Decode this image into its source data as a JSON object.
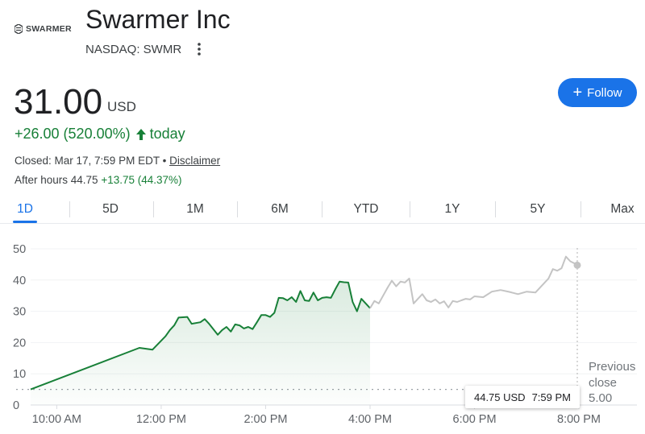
{
  "header": {
    "logo_text": "SWARMER",
    "company_name": "Swarmer Inc",
    "exchange_ticker": "NASDAQ: SWMR",
    "more_icon": "more-vert-icon",
    "follow_label": "Follow"
  },
  "quote": {
    "price": "31.00",
    "currency": "USD",
    "change": "+26.00 (520.00%)",
    "change_suffix": "today",
    "closed_text": "Closed: Mar 17, 7:59 PM EDT •",
    "disclaimer": "Disclaimer",
    "after_hours_label": "After hours 44.75",
    "after_hours_change": "+13.75 (44.37%)"
  },
  "tabs": [
    {
      "label": "1D",
      "active": true
    },
    {
      "label": "5D",
      "active": false
    },
    {
      "label": "1M",
      "active": false
    },
    {
      "label": "6M",
      "active": false
    },
    {
      "label": "YTD",
      "active": false
    },
    {
      "label": "1Y",
      "active": false
    },
    {
      "label": "5Y",
      "active": false
    },
    {
      "label": "Max",
      "active": false
    }
  ],
  "tooltip": {
    "price": "44.75 USD",
    "time": "7:59 PM"
  },
  "colors": {
    "up": "#188038",
    "accent": "#1a73e8",
    "after_hours_line": "#c4c4c4"
  },
  "chart_data": {
    "type": "line",
    "y_ticks": [
      "0",
      "10",
      "20",
      "30",
      "40",
      "50"
    ],
    "x_ticks": [
      "10:00 AM",
      "12:00 PM",
      "2:00 PM",
      "4:00 PM",
      "6:00 PM",
      "8:00 PM"
    ],
    "ylim": [
      0,
      50
    ],
    "previous_close_label": [
      "Previous",
      "close",
      "5.00"
    ],
    "previous_close": 5.0,
    "series": [
      {
        "session": "regular",
        "x": [
          "9:30",
          "11:35",
          "11:50",
          "12:05",
          "12:10",
          "12:15",
          "12:20",
          "12:30",
          "12:35",
          "12:45",
          "12:50",
          "12:55",
          "13:05",
          "13:10",
          "13:15",
          "13:20",
          "13:25",
          "13:30",
          "13:35",
          "13:40",
          "13:45",
          "13:50",
          "13:55",
          "14:00",
          "14:05",
          "14:10",
          "14:15",
          "14:20",
          "14:25",
          "14:30",
          "14:35",
          "14:40",
          "14:45",
          "14:50",
          "14:55",
          "15:00",
          "15:05",
          "15:10",
          "15:15",
          "15:20",
          "15:25",
          "15:30",
          "15:35",
          "15:40",
          "15:45",
          "15:50",
          "16:00"
        ],
        "y": [
          5,
          18.3,
          17.7,
          22,
          24,
          25.5,
          28,
          28.2,
          26,
          26.5,
          27.5,
          26,
          22.5,
          24,
          25,
          23.5,
          25.8,
          25.5,
          24.5,
          25,
          24.3,
          26.5,
          28.8,
          28.8,
          28.2,
          29.5,
          34.3,
          34.2,
          33.5,
          34.5,
          33,
          36.5,
          33.5,
          33.3,
          36,
          33.5,
          34.3,
          34.5,
          34.3,
          37,
          39.5,
          39.3,
          39.2,
          33,
          30,
          34,
          31
        ]
      },
      {
        "session": "after-hours",
        "x": [
          "16:00",
          "16:05",
          "16:10",
          "16:15",
          "16:20",
          "16:25",
          "16:30",
          "16:35",
          "16:40",
          "16:45",
          "16:50",
          "16:55",
          "17:00",
          "17:05",
          "17:10",
          "17:15",
          "17:20",
          "17:25",
          "17:30",
          "17:35",
          "17:40",
          "17:45",
          "17:50",
          "17:55",
          "18:00",
          "18:10",
          "18:20",
          "18:30",
          "18:40",
          "18:50",
          "19:00",
          "19:10",
          "19:20",
          "19:25",
          "19:30",
          "19:35",
          "19:40",
          "19:45",
          "19:50",
          "19:59"
        ],
        "y": [
          31,
          33.3,
          32.5,
          35,
          37.5,
          39.8,
          38,
          39.5,
          39.2,
          40.5,
          32.5,
          34,
          35.5,
          33.5,
          33,
          33.8,
          32.5,
          33.2,
          31.2,
          33.3,
          33,
          33.5,
          34,
          33.8,
          34.8,
          34.5,
          36.3,
          36.8,
          36.2,
          35.5,
          36.3,
          36,
          39,
          40.5,
          43.5,
          43,
          43.8,
          47.5,
          46,
          44.75
        ]
      }
    ]
  }
}
